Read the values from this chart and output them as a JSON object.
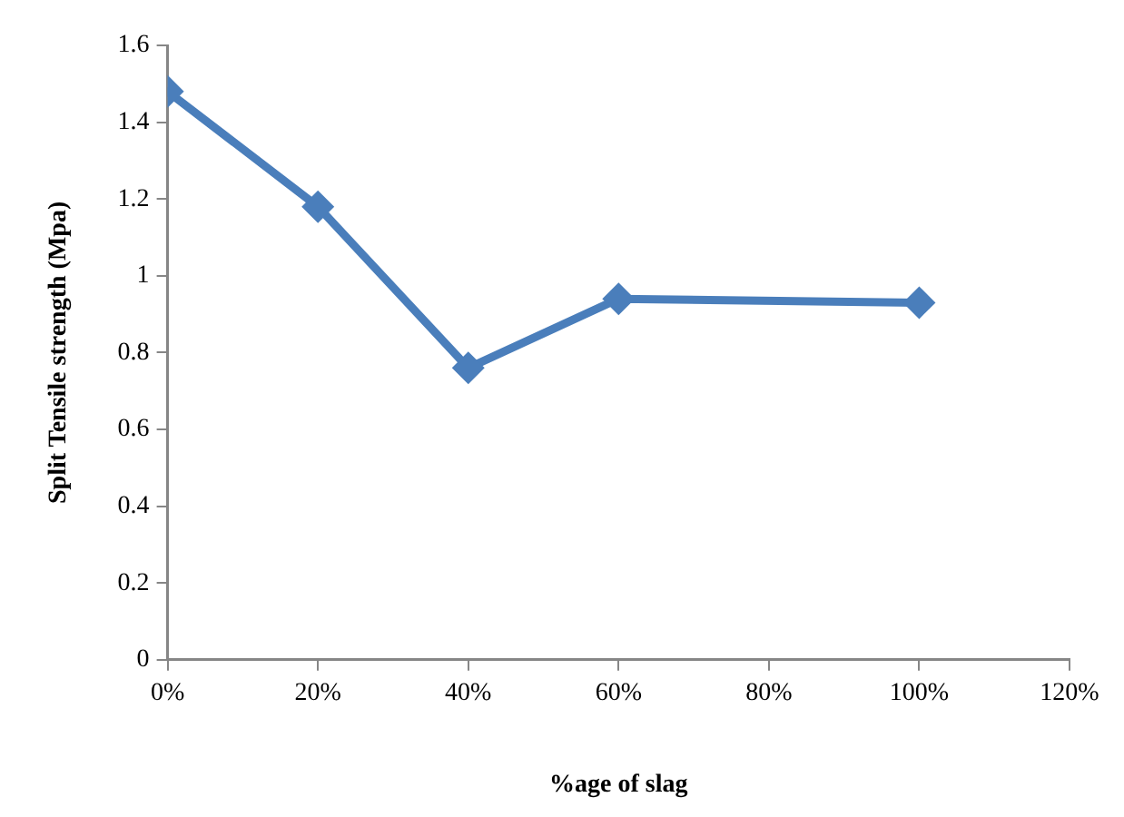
{
  "chart_data": {
    "type": "line",
    "xlabel": "%age of slag",
    "ylabel": "Split Tensile strength (Mpa)",
    "x": [
      0,
      0.2,
      0.4,
      0.6,
      1.0
    ],
    "series": [
      {
        "color": "#4a7ebb",
        "values": [
          1.48,
          1.18,
          0.76,
          0.94,
          0.93
        ]
      }
    ],
    "xlim": [
      0,
      1.2
    ],
    "xticks": [
      {
        "value": 0,
        "label": "0%"
      },
      {
        "value": 0.2,
        "label": "20%"
      },
      {
        "value": 0.4,
        "label": "40%"
      },
      {
        "value": 0.6,
        "label": "60%"
      },
      {
        "value": 0.8,
        "label": "80%"
      },
      {
        "value": 1.0,
        "label": "100%"
      },
      {
        "value": 1.2,
        "label": "120%"
      }
    ],
    "ylim": [
      0,
      1.6
    ],
    "yticks": [
      0,
      0.2,
      0.4,
      0.6,
      0.8,
      1,
      1.2,
      1.4,
      1.6
    ],
    "grid": false,
    "legend": false,
    "marker": "diamond",
    "line_style": "solid"
  }
}
